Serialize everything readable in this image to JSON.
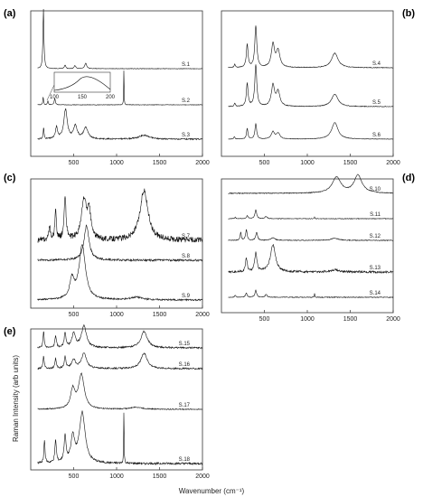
{
  "figure": {
    "ylabel": "Raman Intensity (arb units)",
    "xlabel": "Wavenumber (cm⁻¹)"
  },
  "chart_data": [
    {
      "type": "line",
      "panel_label": "(a)",
      "xlim": [
        0,
        2000
      ],
      "xticks": [
        500,
        1000,
        1500,
        2000
      ],
      "series": [
        {
          "name": "S.1",
          "peaks": [
            [
              148,
              1.0,
              7
            ],
            [
              400,
              0.06,
              10
            ],
            [
              515,
              0.05,
              12
            ],
            [
              640,
              0.09,
              14
            ]
          ]
        },
        {
          "name": "S.2",
          "peaks": [
            [
              145,
              0.2,
              5
            ],
            [
              200,
              0.1,
              6
            ],
            [
              280,
              0.16,
              8
            ],
            [
              1085,
              1.0,
              2.5
            ]
          ]
        },
        {
          "name": "S.3",
          "peaks": [
            [
              150,
              0.35,
              6
            ],
            [
              300,
              0.35,
              14
            ],
            [
              405,
              0.9,
              24
            ],
            [
              520,
              0.4,
              25
            ],
            [
              640,
              0.35,
              30
            ],
            [
              1320,
              0.12,
              70
            ]
          ]
        }
      ],
      "inset": {
        "xlim": [
          100,
          200
        ],
        "xticks": [
          100,
          150,
          200
        ]
      }
    },
    {
      "type": "line",
      "panel_label": "(b)",
      "xlim": [
        0,
        2000
      ],
      "xticks": [
        500,
        1000,
        1500,
        2000
      ],
      "series": [
        {
          "name": "S.4",
          "peaks": [
            [
              155,
              0.08,
              8
            ],
            [
              300,
              0.55,
              12
            ],
            [
              400,
              1.0,
              14
            ],
            [
              600,
              0.55,
              22
            ],
            [
              660,
              0.4,
              25
            ],
            [
              1320,
              0.35,
              45
            ]
          ]
        },
        {
          "name": "S.5",
          "peaks": [
            [
              155,
              0.08,
              8
            ],
            [
              300,
              0.55,
              12
            ],
            [
              400,
              1.0,
              14
            ],
            [
              600,
              0.5,
              22
            ],
            [
              660,
              0.35,
              25
            ],
            [
              1320,
              0.3,
              45
            ]
          ]
        },
        {
          "name": "S.6",
          "peaks": [
            [
              150,
              0.1,
              8
            ],
            [
              300,
              0.45,
              10
            ],
            [
              400,
              0.65,
              12
            ],
            [
              600,
              0.3,
              22
            ],
            [
              660,
              0.25,
              25
            ],
            [
              1320,
              0.7,
              45
            ]
          ]
        }
      ]
    },
    {
      "type": "line",
      "panel_label": "(c)",
      "xlim": [
        0,
        2000
      ],
      "xticks": [
        500,
        1000,
        1500,
        2000
      ],
      "series": [
        {
          "name": "S.7",
          "peaks": [
            [
              220,
              0.25,
              10
            ],
            [
              290,
              0.55,
              10
            ],
            [
              400,
              0.75,
              14
            ],
            [
              620,
              0.7,
              35
            ],
            [
              680,
              0.45,
              25
            ],
            [
              1320,
              0.9,
              55
            ]
          ]
        },
        {
          "name": "S.8",
          "peaks": [
            [
              650,
              1.0,
              35
            ]
          ]
        },
        {
          "name": "S.9",
          "peaks": [
            [
              480,
              0.35,
              30
            ],
            [
              600,
              1.0,
              45
            ],
            [
              1230,
              0.05,
              80
            ]
          ]
        }
      ]
    },
    {
      "type": "line",
      "panel_label": "(d)",
      "xlim": [
        0,
        2000
      ],
      "xticks": [
        500,
        1000,
        1500,
        2000
      ],
      "series": [
        {
          "name": "S.10",
          "peaks": [
            [
              1340,
              0.8,
              60
            ],
            [
              1590,
              0.9,
              55
            ]
          ]
        },
        {
          "name": "S.11",
          "peaks": [
            [
              160,
              0.1,
              8
            ],
            [
              300,
              0.2,
              10
            ],
            [
              400,
              0.6,
              12
            ],
            [
              520,
              0.15,
              15
            ],
            [
              1085,
              0.12,
              3
            ]
          ]
        },
        {
          "name": "S.12",
          "peaks": [
            [
              225,
              0.45,
              8
            ],
            [
              290,
              0.6,
              10
            ],
            [
              410,
              0.45,
              12
            ],
            [
              600,
              0.15,
              25
            ],
            [
              1320,
              0.12,
              50
            ]
          ]
        },
        {
          "name": "S.13",
          "peaks": [
            [
              290,
              0.5,
              12
            ],
            [
              400,
              0.7,
              15
            ],
            [
              600,
              1.0,
              35
            ],
            [
              1320,
              0.08,
              60
            ]
          ]
        },
        {
          "name": "S.14",
          "peaks": [
            [
              160,
              0.15,
              8
            ],
            [
              290,
              0.35,
              10
            ],
            [
              400,
              0.55,
              12
            ],
            [
              520,
              0.2,
              15
            ],
            [
              1085,
              0.35,
              3
            ]
          ]
        }
      ]
    },
    {
      "type": "line",
      "panel_label": "(e)",
      "xlim": [
        0,
        2000
      ],
      "xticks": [
        500,
        1000,
        1500,
        2000
      ],
      "series": [
        {
          "name": "S.15",
          "peaks": [
            [
              150,
              0.6,
              8
            ],
            [
              290,
              0.45,
              10
            ],
            [
              400,
              0.55,
              12
            ],
            [
              500,
              0.5,
              25
            ],
            [
              620,
              0.8,
              35
            ],
            [
              1320,
              0.6,
              45
            ]
          ]
        },
        {
          "name": "S.16",
          "peaks": [
            [
              150,
              0.5,
              8
            ],
            [
              290,
              0.4,
              10
            ],
            [
              400,
              0.45,
              12
            ],
            [
              500,
              0.35,
              25
            ],
            [
              620,
              0.6,
              35
            ],
            [
              1320,
              0.6,
              45
            ]
          ]
        },
        {
          "name": "S.17",
          "peaks": [
            [
              490,
              0.55,
              30
            ],
            [
              590,
              1.0,
              40
            ],
            [
              1230,
              0.06,
              80
            ]
          ]
        },
        {
          "name": "S.18",
          "peaks": [
            [
              160,
              0.45,
              8
            ],
            [
              290,
              0.45,
              10
            ],
            [
              400,
              0.5,
              14
            ],
            [
              490,
              0.5,
              25
            ],
            [
              600,
              1.0,
              40
            ],
            [
              1085,
              1.1,
              3
            ]
          ]
        }
      ]
    }
  ]
}
